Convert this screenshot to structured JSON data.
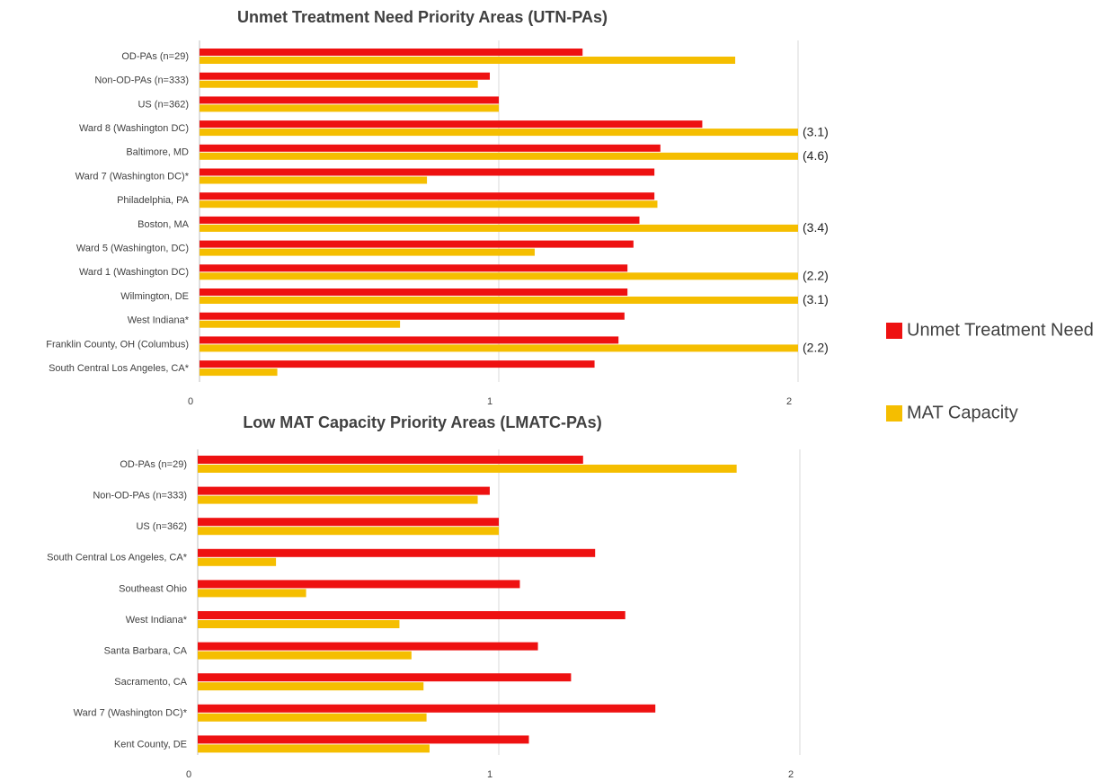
{
  "chart_data": [
    {
      "type": "bar",
      "orientation": "horizontal",
      "title": "Unmet Treatment Need Priority Areas (UTN-PAs)",
      "categories": [
        "OD-PAs (n=29)",
        "Non-OD-PAs (n=333)",
        "US (n=362)",
        "Ward 8 (Washington DC)",
        "Baltimore, MD",
        "Ward 7 (Washington DC)*",
        "Philadelphia, PA",
        "Boston, MA",
        "Ward 5 (Washington, DC)",
        "Ward 1 (Washington DC)",
        "Wilmington, DE",
        "West Indiana*",
        "Franklin County, OH (Columbus)",
        "South Central Los Angeles, CA*"
      ],
      "series": [
        {
          "name": "Unmet Treatment Need",
          "color": "#ee1111",
          "values": [
            1.28,
            0.97,
            1.0,
            1.68,
            1.54,
            1.52,
            1.52,
            1.47,
            1.45,
            1.43,
            1.43,
            1.42,
            1.4,
            1.32
          ]
        },
        {
          "name": "MAT Capacity",
          "color": "#f5be00",
          "values": [
            1.79,
            0.93,
            1.0,
            3.1,
            4.6,
            0.76,
            1.53,
            3.4,
            1.12,
            2.2,
            3.1,
            0.67,
            2.2,
            0.26
          ],
          "value_labels": [
            null,
            null,
            null,
            "(3.1)",
            "(4.6)",
            null,
            null,
            "(3.4)",
            null,
            "(2.2)",
            "(3.1)",
            null,
            "(2.2)",
            null
          ]
        }
      ],
      "xlim": [
        0,
        2
      ],
      "xticks": [
        0,
        1,
        2
      ],
      "grid": true,
      "legend": "right"
    },
    {
      "type": "bar",
      "orientation": "horizontal",
      "title": "Low MAT Capacity Priority Areas (LMATC-PAs)",
      "categories": [
        "OD-PAs (n=29)",
        "Non-OD-PAs (n=333)",
        "US (n=362)",
        "South Central Los Angeles, CA*",
        "Southeast Ohio",
        "West Indiana*",
        "Santa Barbara, CA",
        "Sacramento, CA",
        "Ward 7 (Washington DC)*",
        "Kent County, DE"
      ],
      "series": [
        {
          "color": "#ee1111",
          "values": [
            1.28,
            0.97,
            1.0,
            1.32,
            1.07,
            1.42,
            1.13,
            1.24,
            1.52,
            1.1
          ]
        },
        {
          "color": "#f5be00",
          "values": [
            1.79,
            0.93,
            1.0,
            0.26,
            0.36,
            0.67,
            0.71,
            0.75,
            0.76,
            0.77
          ]
        }
      ],
      "xlim": [
        0,
        2
      ],
      "xticks": [
        0,
        1,
        2
      ],
      "grid": true
    }
  ]
}
